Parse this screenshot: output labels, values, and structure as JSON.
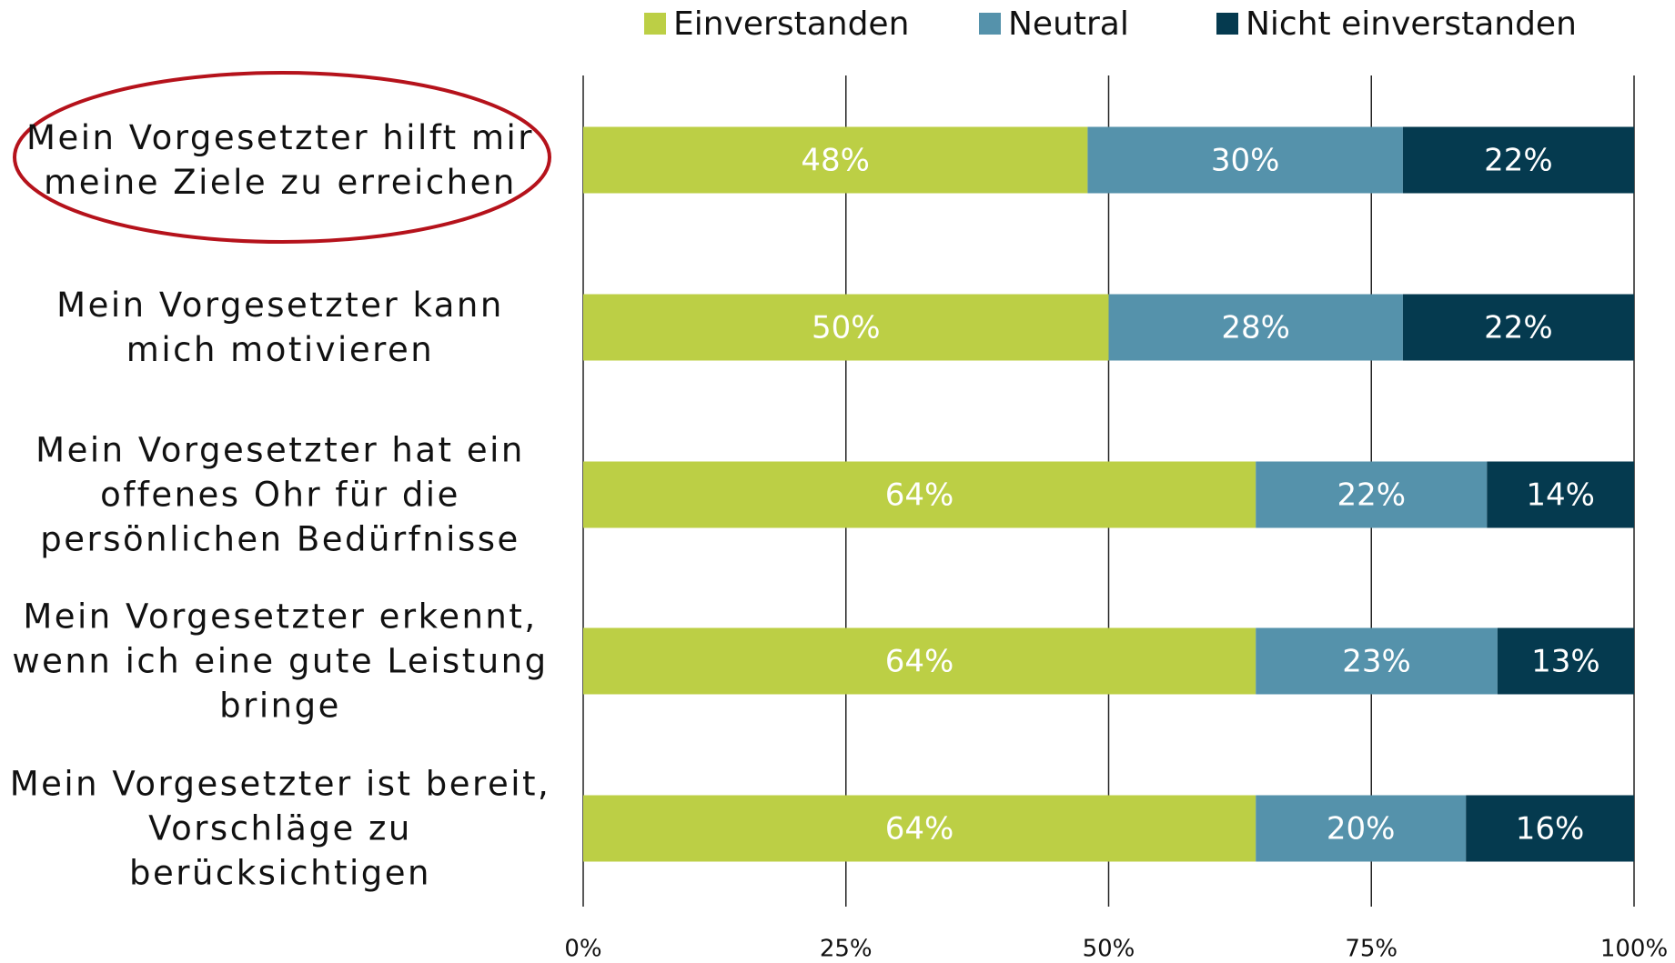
{
  "chart_data": {
    "type": "stacked-barh",
    "categories": [
      "Mein Vorgesetzter hilft mir meine Ziele zu erreichen",
      "Mein Vorgesetzter kann mich motivieren",
      "Mein Vorgesetzter hat ein offenes Ohr für die persönlichen Bedürfnisse",
      "Mein Vorgesetzter erkennt, wenn ich eine gute Leistung bringe",
      "Mein Vorgesetzter ist bereit, Vorschläge zu berücksichtigen"
    ],
    "series": [
      {
        "name": "Einverstanden",
        "color": "#bccf45",
        "values": [
          48,
          50,
          64,
          64,
          64
        ],
        "value_labels": [
          "48%",
          "50%",
          "64%",
          "64%",
          "64%"
        ]
      },
      {
        "name": "Neutral",
        "color": "#5592ab",
        "values": [
          30,
          28,
          22,
          23,
          20
        ],
        "value_labels": [
          "30%",
          "28%",
          "22%",
          "23%",
          "20%"
        ]
      },
      {
        "name": "Nicht einverstanden",
        "color": "#053a4f",
        "values": [
          22,
          22,
          14,
          13,
          16
        ],
        "value_labels": [
          "22%",
          "22%",
          "14%",
          "13%",
          "16%"
        ]
      }
    ],
    "xlim": [
      0,
      100
    ],
    "xticks": [
      {
        "value": 0,
        "label": "0%"
      },
      {
        "value": 25,
        "label": "25%"
      },
      {
        "value": 50,
        "label": "50%"
      },
      {
        "value": 75,
        "label": "75%"
      },
      {
        "value": 100,
        "label": "100%"
      }
    ],
    "grid": true,
    "legend": "top"
  }
}
